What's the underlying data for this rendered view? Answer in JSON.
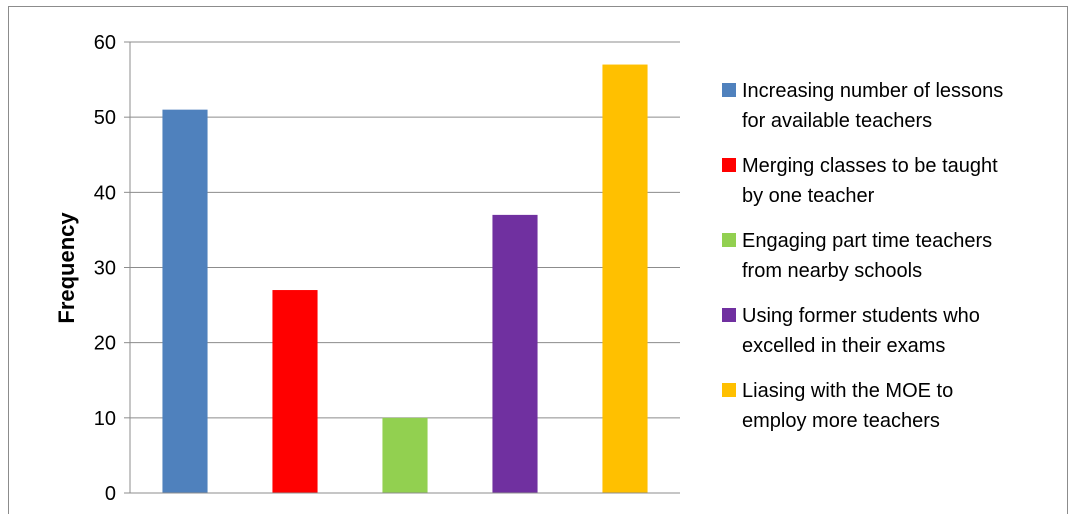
{
  "chart_data": {
    "type": "bar",
    "title": "",
    "xlabel": "",
    "ylabel": "Frequency",
    "ylim": [
      0,
      60
    ],
    "yticks": [
      "0",
      "10",
      "20",
      "30",
      "40",
      "50",
      "60"
    ],
    "grid": true,
    "legend_position": "right",
    "categories": [
      "Increasing number of lessons for available teachers",
      "Merging classes to be taught by one teacher",
      "Engaging part time teachers from nearby schools",
      "Using former students who excelled in their exams",
      "Liasing with the MOE to employ more teachers"
    ],
    "values": [
      51,
      27,
      10,
      37,
      57
    ],
    "colors": [
      "#4f81bd",
      "#ff0000",
      "#92d050",
      "#7030a0",
      "#ffc000"
    ],
    "legend": [
      {
        "lines": [
          "Increasing number of lessons",
          "for available teachers"
        ],
        "color": "#4f81bd"
      },
      {
        "lines": [
          "Merging classes to be taught",
          "by one teacher"
        ],
        "color": "#ff0000"
      },
      {
        "lines": [
          "Engaging part time teachers",
          "from nearby schools"
        ],
        "color": "#92d050"
      },
      {
        "lines": [
          "Using former students who",
          "excelled in their exams"
        ],
        "color": "#7030a0"
      },
      {
        "lines": [
          "Liasing with the MOE to",
          "employ more teachers"
        ],
        "color": "#ffc000"
      }
    ]
  }
}
